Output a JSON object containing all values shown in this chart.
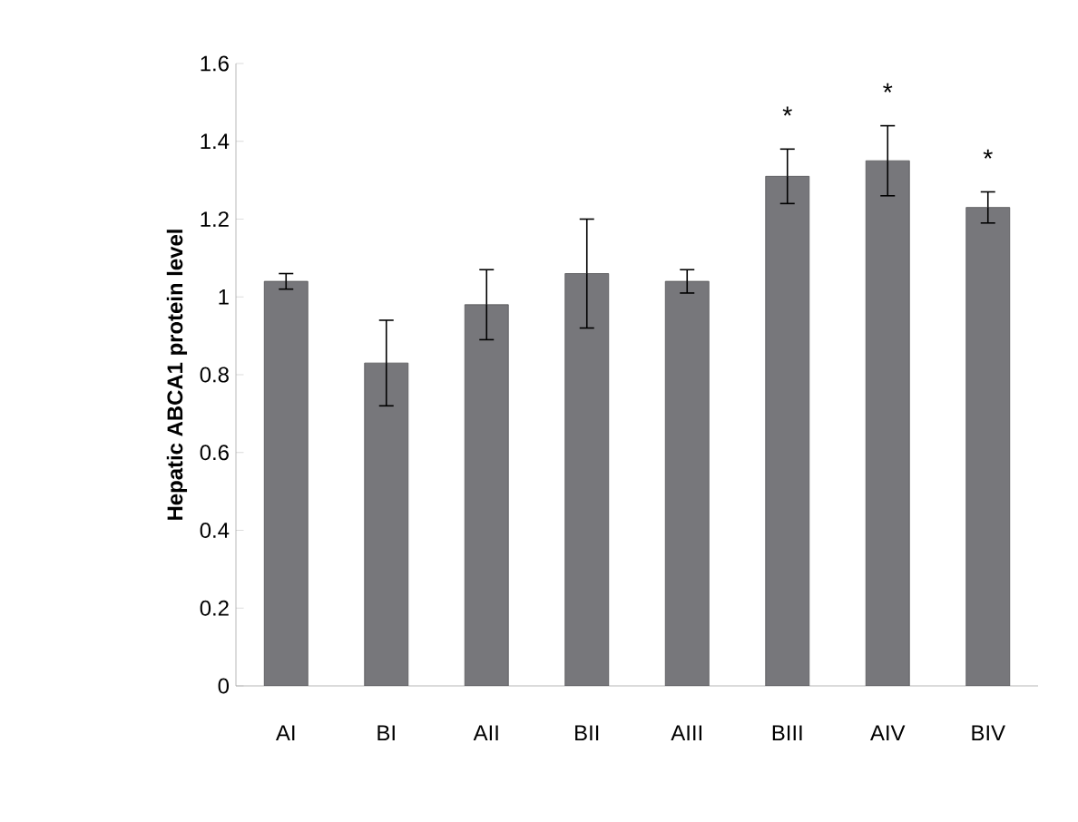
{
  "chart_data": {
    "type": "bar",
    "ylabel": "Hepatic ABCA1 protein level",
    "categories": [
      "AI",
      "BI",
      "AII",
      "BII",
      "AIII",
      "BIII",
      "AIV",
      "BIV"
    ],
    "values": [
      1.04,
      0.83,
      0.98,
      1.06,
      1.04,
      1.31,
      1.35,
      1.23
    ],
    "errors": [
      0.02,
      0.11,
      0.09,
      0.14,
      0.03,
      0.07,
      0.09,
      0.04
    ],
    "color": "#77777b",
    "ylim": [
      0,
      1.6
    ],
    "yticks": [
      0,
      0.2,
      0.4,
      0.6,
      0.8,
      1,
      1.2,
      1.4,
      1.6
    ],
    "annotations": [
      {
        "text": "*",
        "x": "BIII",
        "y": 1.31
      },
      {
        "text": "*",
        "x": "AIV",
        "y": 1.35
      },
      {
        "text": "*",
        "x": "BIV",
        "y": 1.23
      }
    ]
  }
}
